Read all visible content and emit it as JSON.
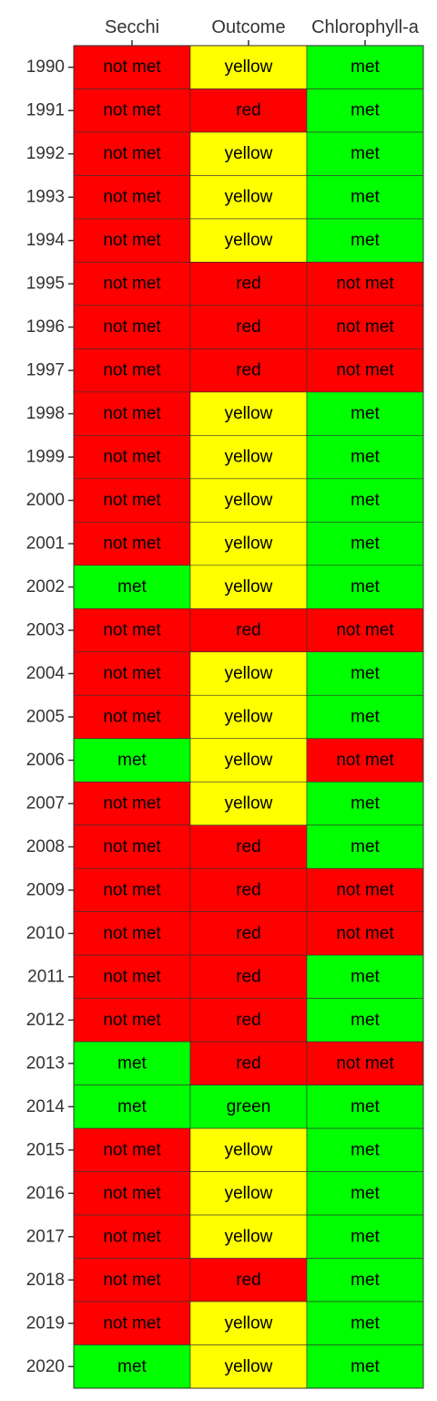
{
  "chart_data": {
    "type": "heatmap",
    "title": "",
    "xlabel": "",
    "ylabel": "",
    "columns": [
      "Secchi",
      "Outcome",
      "Chlorophyll-a"
    ],
    "years": [
      "1990",
      "1991",
      "1992",
      "1993",
      "1994",
      "1995",
      "1996",
      "1997",
      "1998",
      "1999",
      "2000",
      "2001",
      "2002",
      "2003",
      "2004",
      "2005",
      "2006",
      "2007",
      "2008",
      "2009",
      "2010",
      "2011",
      "2012",
      "2013",
      "2014",
      "2015",
      "2016",
      "2017",
      "2018",
      "2019",
      "2020"
    ],
    "rows": [
      [
        "not met",
        "yellow",
        "met"
      ],
      [
        "not met",
        "red",
        "met"
      ],
      [
        "not met",
        "yellow",
        "met"
      ],
      [
        "not met",
        "yellow",
        "met"
      ],
      [
        "not met",
        "yellow",
        "met"
      ],
      [
        "not met",
        "red",
        "not met"
      ],
      [
        "not met",
        "red",
        "not met"
      ],
      [
        "not met",
        "red",
        "not met"
      ],
      [
        "not met",
        "yellow",
        "met"
      ],
      [
        "not met",
        "yellow",
        "met"
      ],
      [
        "not met",
        "yellow",
        "met"
      ],
      [
        "not met",
        "yellow",
        "met"
      ],
      [
        "met",
        "yellow",
        "met"
      ],
      [
        "not met",
        "red",
        "not met"
      ],
      [
        "not met",
        "yellow",
        "met"
      ],
      [
        "not met",
        "yellow",
        "met"
      ],
      [
        "met",
        "yellow",
        "not met"
      ],
      [
        "not met",
        "yellow",
        "met"
      ],
      [
        "not met",
        "red",
        "met"
      ],
      [
        "not met",
        "red",
        "not met"
      ],
      [
        "not met",
        "red",
        "not met"
      ],
      [
        "not met",
        "red",
        "met"
      ],
      [
        "not met",
        "red",
        "met"
      ],
      [
        "met",
        "red",
        "not met"
      ],
      [
        "met",
        "green",
        "met"
      ],
      [
        "not met",
        "yellow",
        "met"
      ],
      [
        "not met",
        "yellow",
        "met"
      ],
      [
        "not met",
        "yellow",
        "met"
      ],
      [
        "not met",
        "red",
        "met"
      ],
      [
        "not met",
        "yellow",
        "met"
      ],
      [
        "met",
        "yellow",
        "met"
      ]
    ],
    "colors": {
      "met": "#00ff00",
      "not met": "#ff0000",
      "red": "#ff0000",
      "yellow": "#ffff00",
      "green": "#00ff00"
    },
    "grid": false,
    "legend": "none"
  }
}
